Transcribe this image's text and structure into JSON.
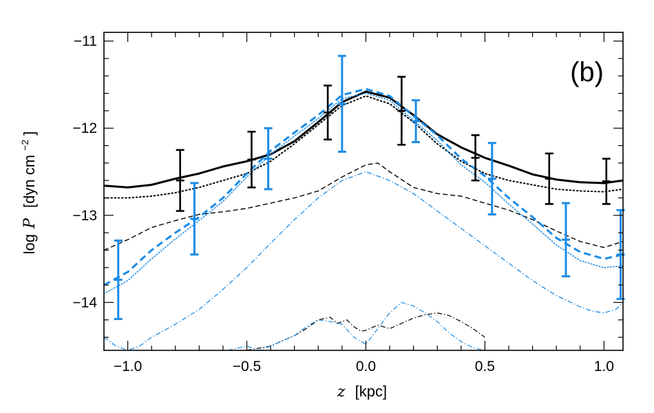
{
  "chart_data": {
    "type": "line",
    "panel_label": "(b)",
    "xlabel": "z [kpc]",
    "xlabel_parts": {
      "symbol": "z",
      "unit": "[kpc]"
    },
    "ylabel": "log P [dyn cm^-2]",
    "ylabel_parts": {
      "prefix": "log",
      "symbol": "P",
      "unit": "[dyn cm",
      "exponent": "−2",
      "close": "]"
    },
    "xlim": [
      -1.1,
      1.08
    ],
    "ylim": [
      -14.55,
      -10.9
    ],
    "x_ticks": [
      -1.0,
      -0.5,
      0.0,
      0.5,
      1.0
    ],
    "x_tick_labels": [
      "−1.0",
      "−0.5",
      "0.0",
      "0.5",
      "1.0"
    ],
    "y_ticks": [
      -14,
      -13,
      -12,
      -11
    ],
    "y_tick_labels": [
      "−14",
      "−13",
      "−12",
      "−11"
    ],
    "grid": false,
    "legend": "none",
    "colors": {
      "black": "#000000",
      "blue": "#1a8be6"
    },
    "series": [
      {
        "color": "#000000",
        "style": "solid",
        "width": 3,
        "x": [
          -1.1,
          -1.0,
          -0.9,
          -0.8,
          -0.7,
          -0.6,
          -0.5,
          -0.4,
          -0.3,
          -0.2,
          -0.1,
          0.0,
          0.1,
          0.2,
          0.3,
          0.4,
          0.5,
          0.6,
          0.7,
          0.8,
          0.9,
          1.0,
          1.08
        ],
        "y": [
          -12.66,
          -12.68,
          -12.65,
          -12.58,
          -12.52,
          -12.44,
          -12.38,
          -12.3,
          -12.15,
          -11.93,
          -11.7,
          -11.58,
          -11.65,
          -11.85,
          -12.07,
          -12.22,
          -12.34,
          -12.43,
          -12.53,
          -12.59,
          -12.62,
          -12.63,
          -12.6
        ]
      },
      {
        "color": "#000000",
        "style": "dotted",
        "width": 2,
        "x": [
          -1.1,
          -1.0,
          -0.9,
          -0.8,
          -0.7,
          -0.6,
          -0.5,
          -0.4,
          -0.3,
          -0.2,
          -0.1,
          0.0,
          0.1,
          0.2,
          0.3,
          0.4,
          0.5,
          0.6,
          0.7,
          0.8,
          0.9,
          1.0,
          1.08
        ],
        "y": [
          -12.8,
          -12.8,
          -12.78,
          -12.74,
          -12.68,
          -12.6,
          -12.52,
          -12.38,
          -12.18,
          -11.96,
          -11.74,
          -11.63,
          -11.72,
          -11.93,
          -12.18,
          -12.38,
          -12.52,
          -12.6,
          -12.65,
          -12.7,
          -12.72,
          -12.73,
          -12.7
        ]
      },
      {
        "color": "#000000",
        "style": "dashed",
        "width": 1.4,
        "x": [
          -1.1,
          -1.0,
          -0.9,
          -0.8,
          -0.7,
          -0.6,
          -0.5,
          -0.4,
          -0.3,
          -0.2,
          -0.1,
          0.0,
          0.05,
          0.1,
          0.2,
          0.3,
          0.4,
          0.5,
          0.6,
          0.7,
          0.8,
          0.9,
          1.0,
          1.08
        ],
        "y": [
          -13.4,
          -13.28,
          -13.14,
          -13.06,
          -12.99,
          -12.96,
          -12.92,
          -12.86,
          -12.8,
          -12.72,
          -12.56,
          -12.42,
          -12.4,
          -12.5,
          -12.68,
          -12.75,
          -12.78,
          -12.86,
          -12.94,
          -13.05,
          -13.18,
          -13.3,
          -13.37,
          -13.3
        ]
      },
      {
        "color": "#000000",
        "style": "dash-dot",
        "width": 1.2,
        "x": [
          -0.5,
          -0.4,
          -0.3,
          -0.25,
          -0.2,
          -0.15,
          -0.12,
          -0.08,
          -0.05,
          -0.02,
          0.0,
          0.05,
          0.1,
          0.15,
          0.2,
          0.25,
          0.3,
          0.35,
          0.4,
          0.45,
          0.5
        ],
        "y": [
          -14.55,
          -14.5,
          -14.38,
          -14.3,
          -14.2,
          -14.17,
          -14.24,
          -14.2,
          -14.28,
          -14.33,
          -14.32,
          -14.26,
          -14.3,
          -14.24,
          -14.18,
          -14.14,
          -14.12,
          -14.15,
          -14.22,
          -14.3,
          -14.4
        ]
      },
      {
        "color": "#1a8be6",
        "style": "dashed",
        "width": 3,
        "x": [
          -1.1,
          -1.0,
          -0.9,
          -0.8,
          -0.7,
          -0.6,
          -0.5,
          -0.4,
          -0.3,
          -0.2,
          -0.1,
          0.0,
          0.1,
          0.2,
          0.3,
          0.4,
          0.5,
          0.6,
          0.7,
          0.8,
          0.9,
          1.0,
          1.08
        ],
        "y": [
          -13.8,
          -13.65,
          -13.4,
          -13.2,
          -13.02,
          -12.8,
          -12.52,
          -12.26,
          -12.05,
          -11.85,
          -11.62,
          -11.55,
          -11.63,
          -11.86,
          -12.08,
          -12.35,
          -12.55,
          -12.8,
          -13.02,
          -13.26,
          -13.42,
          -13.5,
          -13.45
        ]
      },
      {
        "color": "#1a8be6",
        "style": "dotted",
        "width": 1.6,
        "x": [
          -1.1,
          -1.0,
          -0.9,
          -0.8,
          -0.7,
          -0.6,
          -0.5,
          -0.4,
          -0.3,
          -0.2,
          -0.1,
          0.0,
          0.1,
          0.2,
          0.3,
          0.4,
          0.5,
          0.6,
          0.7,
          0.8,
          0.9,
          1.0,
          1.08
        ],
        "y": [
          -13.9,
          -13.75,
          -13.5,
          -13.27,
          -13.06,
          -12.84,
          -12.56,
          -12.3,
          -12.09,
          -11.89,
          -11.66,
          -11.6,
          -11.68,
          -11.91,
          -12.14,
          -12.42,
          -12.62,
          -12.87,
          -13.1,
          -13.34,
          -13.52,
          -13.6,
          -13.58
        ]
      },
      {
        "color": "#1a8be6",
        "style": "dash-dot",
        "width": 1.3,
        "x": [
          -1.1,
          -1.05,
          -1.0,
          -0.95,
          -0.9,
          -0.8,
          -0.7,
          -0.6,
          -0.5,
          -0.4,
          -0.3,
          -0.2,
          -0.1,
          0.0,
          0.1,
          0.2,
          0.3,
          0.4,
          0.5,
          0.6,
          0.7,
          0.8,
          0.9,
          0.95,
          1.0,
          1.05,
          1.08
        ],
        "y": [
          -14.4,
          -14.5,
          -14.55,
          -14.5,
          -14.4,
          -14.25,
          -14.08,
          -13.85,
          -13.6,
          -13.32,
          -13.05,
          -12.8,
          -12.6,
          -12.5,
          -12.6,
          -12.75,
          -12.95,
          -13.15,
          -13.35,
          -13.55,
          -13.75,
          -13.92,
          -14.05,
          -14.1,
          -14.12,
          -14.08,
          -14.0
        ]
      },
      {
        "color": "#1a8be6",
        "style": "dash-dot",
        "width": 1.2,
        "x": [
          -0.58,
          -0.5,
          -0.45,
          -0.4,
          -0.3,
          -0.25,
          -0.2,
          -0.15,
          -0.1,
          -0.05,
          0.0,
          0.05,
          0.1,
          0.15,
          0.2,
          0.25,
          0.3,
          0.35,
          0.4,
          0.45,
          0.5
        ],
        "y": [
          -14.55,
          -14.5,
          -14.55,
          -14.5,
          -14.38,
          -14.28,
          -14.2,
          -14.22,
          -14.25,
          -14.4,
          -14.48,
          -14.3,
          -14.12,
          -14.0,
          -14.04,
          -14.12,
          -14.22,
          -14.35,
          -14.45,
          -14.52,
          -14.55
        ]
      }
    ],
    "error_bars": [
      {
        "color": "#000000",
        "x": -0.78,
        "y": -12.6,
        "lo": -12.95,
        "hi": -12.25
      },
      {
        "color": "#000000",
        "x": -0.48,
        "y": -12.36,
        "lo": -12.68,
        "hi": -12.04
      },
      {
        "color": "#000000",
        "x": -0.16,
        "y": -11.82,
        "lo": -12.13,
        "hi": -11.51
      },
      {
        "color": "#000000",
        "x": 0.15,
        "y": -11.8,
        "lo": -12.19,
        "hi": -11.41
      },
      {
        "color": "#000000",
        "x": 0.46,
        "y": -12.34,
        "lo": -12.6,
        "hi": -12.08
      },
      {
        "color": "#000000",
        "x": 0.77,
        "y": -12.58,
        "lo": -12.87,
        "hi": -12.29
      },
      {
        "color": "#000000",
        "x": 1.01,
        "y": -12.61,
        "lo": -12.87,
        "hi": -12.35
      },
      {
        "color": "#1a8be6",
        "x": -1.04,
        "y": -13.74,
        "lo": -14.19,
        "hi": -13.29
      },
      {
        "color": "#1a8be6",
        "x": -0.72,
        "y": -13.04,
        "lo": -13.45,
        "hi": -12.63
      },
      {
        "color": "#1a8be6",
        "x": -0.41,
        "y": -12.35,
        "lo": -12.7,
        "hi": -12.0
      },
      {
        "color": "#1a8be6",
        "x": -0.1,
        "y": -11.72,
        "lo": -12.27,
        "hi": -11.17
      },
      {
        "color": "#1a8be6",
        "x": 0.21,
        "y": -11.92,
        "lo": -12.16,
        "hi": -11.68
      },
      {
        "color": "#1a8be6",
        "x": 0.53,
        "y": -12.58,
        "lo": -12.99,
        "hi": -12.17
      },
      {
        "color": "#1a8be6",
        "x": 0.84,
        "y": -13.28,
        "lo": -13.7,
        "hi": -12.86
      },
      {
        "color": "#1a8be6",
        "x": 1.07,
        "y": -13.45,
        "lo": -13.96,
        "hi": -12.94
      }
    ]
  }
}
